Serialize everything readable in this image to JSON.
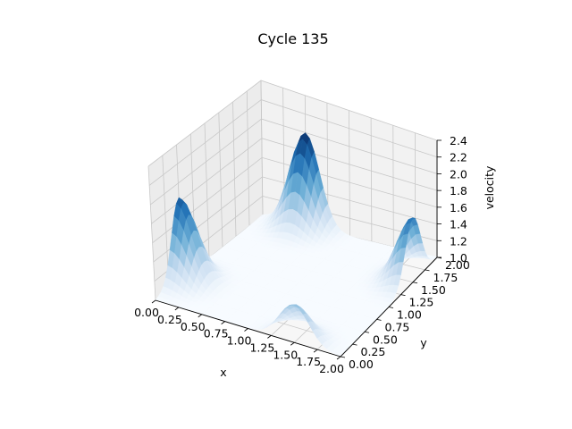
{
  "chart_data": {
    "type": "surface",
    "title": "Cycle 135",
    "xlabel": "x",
    "ylabel": "y",
    "zlabel": "velocity",
    "xlim": [
      0,
      2
    ],
    "ylim": [
      0,
      2
    ],
    "zlim": [
      1.0,
      2.4
    ],
    "xticks": [
      "0.00",
      "0.25",
      "0.50",
      "0.75",
      "1.00",
      "1.25",
      "1.50",
      "1.75",
      "2.00"
    ],
    "yticks": [
      "0.00",
      "0.25",
      "0.50",
      "0.75",
      "1.00",
      "1.25",
      "1.50",
      "1.75",
      "2.00"
    ],
    "zticks": [
      "1.0",
      "1.2",
      "1.4",
      "1.6",
      "1.8",
      "2.0",
      "2.2",
      "2.4"
    ],
    "colormap": "Blues",
    "grid": true,
    "base_value": 1.0,
    "peaks": [
      {
        "x": 0.5,
        "y": 2.0,
        "height": 2.0
      },
      {
        "x": 0.0,
        "y": 0.5,
        "height": 1.85
      },
      {
        "x": 1.5,
        "y": 0.0,
        "height": 1.4
      },
      {
        "x": 2.0,
        "y": 1.5,
        "height": 1.75
      }
    ]
  }
}
